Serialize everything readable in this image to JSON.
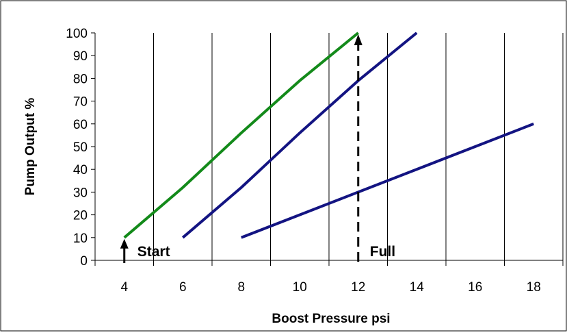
{
  "chart_data": {
    "type": "line",
    "xlabel": "Boost Pressure psi",
    "ylabel": "Pump Output %",
    "xlim": [
      3,
      19
    ],
    "ylim": [
      0,
      100
    ],
    "x_ticks": [
      "4",
      "6",
      "8",
      "10",
      "12",
      "14",
      "16",
      "18"
    ],
    "y_ticks": [
      "0",
      "10",
      "20",
      "30",
      "40",
      "50",
      "60",
      "70",
      "80",
      "90",
      "100"
    ],
    "grid": "vertical",
    "series": [
      {
        "color": "#138a1a",
        "points": [
          [
            4,
            10
          ],
          [
            6,
            32
          ],
          [
            8,
            56
          ],
          [
            10,
            79
          ],
          [
            12,
            100
          ]
        ]
      },
      {
        "color": "#131482",
        "points": [
          [
            6,
            10
          ],
          [
            8,
            32
          ],
          [
            10,
            56
          ],
          [
            12,
            79
          ],
          [
            14,
            100
          ]
        ]
      },
      {
        "color": "#131482",
        "points": [
          [
            8,
            10
          ],
          [
            12,
            30
          ],
          [
            18,
            60
          ]
        ]
      }
    ],
    "annotations": [
      {
        "text": "Start",
        "x": 4,
        "arrow_y": 10
      },
      {
        "text": "Full",
        "x": 12,
        "arrow_y": 100
      }
    ]
  }
}
